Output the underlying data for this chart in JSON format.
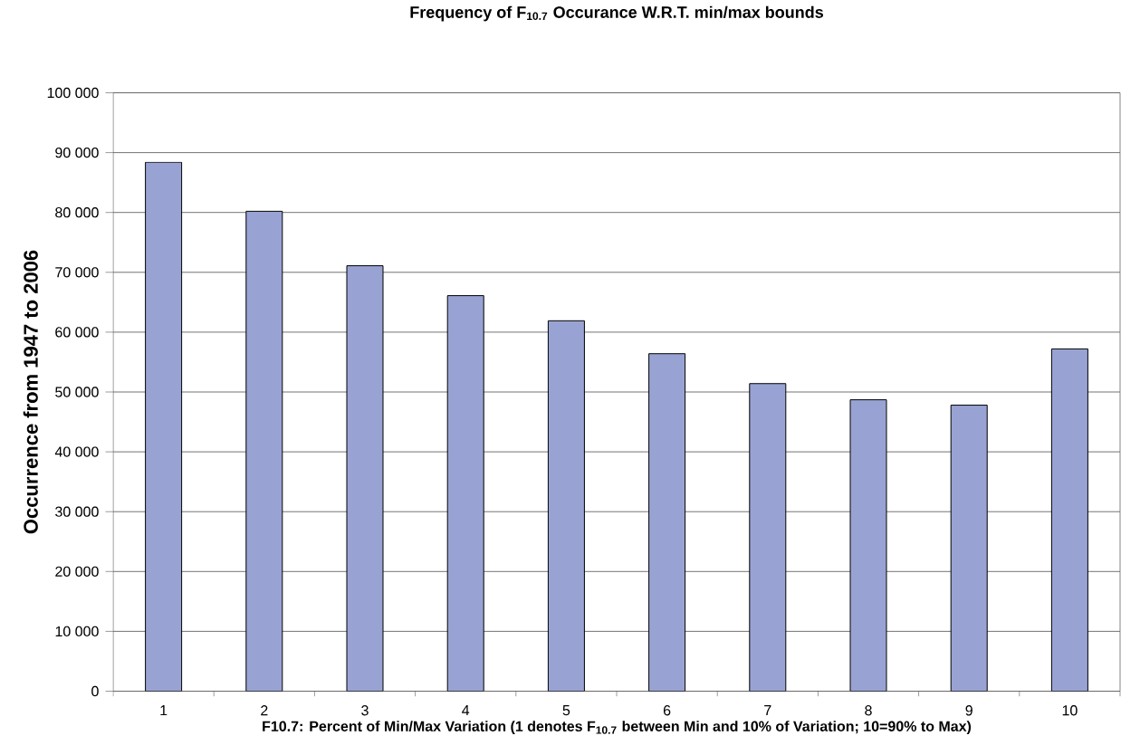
{
  "chart_data": {
    "type": "bar",
    "title": "Frequency of F$_{10.7}$  Occurance W.R.T. min/max bounds",
    "xlabel": "F10.7: Percent of Min/Max Variation (1 denotes F$_{10.7}$ between Min and 10% of Variation; 10=90% to Max)",
    "ylabel": "Occurrence from 1947 to 2006",
    "categories": [
      "1",
      "2",
      "3",
      "4",
      "5",
      "6",
      "7",
      "8",
      "9",
      "10"
    ],
    "values": [
      88400,
      80200,
      71100,
      66100,
      61900,
      56400,
      51400,
      48700,
      47800,
      57200
    ],
    "color": "#99a3d3",
    "ylim": [
      0,
      100000
    ],
    "yticks": [
      0,
      {
        "value": 10000,
        "label": "10 000"
      },
      {
        "value": 20000,
        "label": "20 000"
      },
      {
        "value": 30000,
        "label": "30 000"
      },
      {
        "value": 40000,
        "label": "40 000"
      },
      {
        "value": 50000,
        "label": "50 000"
      },
      {
        "value": 60000,
        "label": "60 000"
      },
      {
        "value": 70000,
        "label": "70 000"
      },
      {
        "value": 80000,
        "label": "80 000"
      },
      {
        "value": 90000,
        "label": "90 000"
      },
      {
        "value": 100000,
        "label": "100 000"
      }
    ],
    "grid": "y"
  }
}
